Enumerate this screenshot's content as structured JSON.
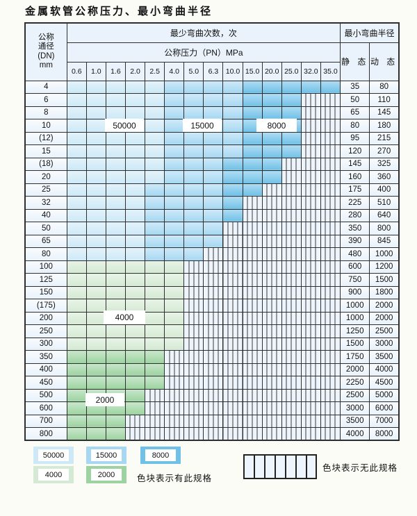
{
  "title": "金属软管公称压力、最小弯曲半径",
  "table": {
    "corner_header": [
      "公称",
      "通径",
      "(DN)",
      "mm"
    ],
    "bend_cycles_header": "最少弯曲次数，次",
    "radius_header": "最小弯曲半径",
    "pressure_header": "公称压力（PN）MPa",
    "static_header": "静 态",
    "dynamic_header": "动 态",
    "pressure_columns": [
      "0.6",
      "1.0",
      "1.6",
      "2.0",
      "2.5",
      "4.0",
      "5.0",
      "6.3",
      "10.0",
      "15.0",
      "20.0",
      "25.0",
      "32.0",
      "35.0"
    ],
    "rows": [
      {
        "dn": "4",
        "zones": [
          [
            "b1",
            5
          ],
          [
            "b2",
            4
          ],
          [
            "b3",
            5
          ]
        ],
        "static": "35",
        "dynamic": "80"
      },
      {
        "dn": "6",
        "zones": [
          [
            "b1",
            5
          ],
          [
            "b2",
            4
          ],
          [
            "b3",
            3
          ]
        ],
        "static": "50",
        "dynamic": "110"
      },
      {
        "dn": "8",
        "zones": [
          [
            "b1",
            5
          ],
          [
            "b2",
            4
          ],
          [
            "b3",
            3
          ]
        ],
        "static": "65",
        "dynamic": "145"
      },
      {
        "dn": "10",
        "zones": [
          [
            "b1",
            5
          ],
          [
            "b2",
            4
          ],
          [
            "b3",
            3
          ]
        ],
        "static": "80",
        "dynamic": "180"
      },
      {
        "dn": "(12)",
        "zones": [
          [
            "b1",
            5
          ],
          [
            "b2",
            4
          ],
          [
            "b3",
            3
          ]
        ],
        "static": "95",
        "dynamic": "215"
      },
      {
        "dn": "15",
        "zones": [
          [
            "b1",
            5
          ],
          [
            "b2",
            4
          ],
          [
            "b3",
            3
          ]
        ],
        "static": "120",
        "dynamic": "270"
      },
      {
        "dn": "(18)",
        "zones": [
          [
            "b1",
            5
          ],
          [
            "b2",
            3
          ],
          [
            "b3",
            3
          ]
        ],
        "static": "145",
        "dynamic": "325"
      },
      {
        "dn": "20",
        "zones": [
          [
            "b1",
            5
          ],
          [
            "b2",
            3
          ],
          [
            "b3",
            3
          ]
        ],
        "static": "160",
        "dynamic": "360"
      },
      {
        "dn": "25",
        "zones": [
          [
            "b1",
            4
          ],
          [
            "b2",
            4
          ],
          [
            "b3",
            2
          ]
        ],
        "static": "175",
        "dynamic": "400"
      },
      {
        "dn": "32",
        "zones": [
          [
            "b1",
            4
          ],
          [
            "b2",
            4
          ],
          [
            "b3",
            1
          ]
        ],
        "static": "225",
        "dynamic": "510"
      },
      {
        "dn": "40",
        "zones": [
          [
            "b1",
            4
          ],
          [
            "b2",
            4
          ],
          [
            "b3",
            1
          ]
        ],
        "static": "280",
        "dynamic": "640"
      },
      {
        "dn": "50",
        "zones": [
          [
            "b1",
            4
          ],
          [
            "b2",
            4
          ]
        ],
        "static": "350",
        "dynamic": "800"
      },
      {
        "dn": "65",
        "zones": [
          [
            "b1",
            4
          ],
          [
            "b2",
            4
          ]
        ],
        "static": "390",
        "dynamic": "845"
      },
      {
        "dn": "80",
        "zones": [
          [
            "b1",
            4
          ],
          [
            "b2",
            3
          ]
        ],
        "static": "480",
        "dynamic": "1000"
      },
      {
        "dn": "100",
        "zones": [
          [
            "g1",
            6
          ]
        ],
        "static": "600",
        "dynamic": "1200"
      },
      {
        "dn": "125",
        "zones": [
          [
            "g1",
            6
          ]
        ],
        "static": "750",
        "dynamic": "1500"
      },
      {
        "dn": "150",
        "zones": [
          [
            "g1",
            6
          ]
        ],
        "static": "900",
        "dynamic": "1800"
      },
      {
        "dn": "(175)",
        "zones": [
          [
            "g1",
            6
          ]
        ],
        "static": "1000",
        "dynamic": "2000"
      },
      {
        "dn": "200",
        "zones": [
          [
            "g1",
            6
          ]
        ],
        "static": "1000",
        "dynamic": "2000"
      },
      {
        "dn": "250",
        "zones": [
          [
            "g1",
            6
          ]
        ],
        "static": "1250",
        "dynamic": "2500"
      },
      {
        "dn": "300",
        "zones": [
          [
            "g1",
            6
          ]
        ],
        "static": "1500",
        "dynamic": "3000"
      },
      {
        "dn": "350",
        "zones": [
          [
            "g2",
            5
          ]
        ],
        "static": "1750",
        "dynamic": "3500"
      },
      {
        "dn": "400",
        "zones": [
          [
            "g2",
            5
          ]
        ],
        "static": "2000",
        "dynamic": "4000"
      },
      {
        "dn": "450",
        "zones": [
          [
            "g2",
            5
          ]
        ],
        "static": "2250",
        "dynamic": "4500"
      },
      {
        "dn": "500",
        "zones": [
          [
            "g2",
            4
          ]
        ],
        "static": "2500",
        "dynamic": "5000"
      },
      {
        "dn": "600",
        "zones": [
          [
            "g2",
            4
          ]
        ],
        "static": "3000",
        "dynamic": "6000"
      },
      {
        "dn": "700",
        "zones": [
          [
            "g2",
            3
          ]
        ],
        "static": "3500",
        "dynamic": "7000"
      },
      {
        "dn": "800",
        "zones": [
          [
            "g2",
            3
          ]
        ],
        "static": "4000",
        "dynamic": "8000"
      }
    ]
  },
  "overlays": [
    {
      "text": "50000"
    },
    {
      "text": "15000"
    },
    {
      "text": "8000"
    },
    {
      "text": "4000"
    },
    {
      "text": "2000"
    }
  ],
  "legend": {
    "items": [
      {
        "value": "50000",
        "zone": "b1"
      },
      {
        "value": "15000",
        "zone": "b2"
      },
      {
        "value": "8000",
        "zone": "b3"
      },
      {
        "value": "4000",
        "zone": "g1"
      },
      {
        "value": "2000",
        "zone": "g2"
      }
    ],
    "has_spec_text": "色块表示有此规格",
    "no_spec_text": "色块表示无此规格"
  },
  "colors": {
    "cycle_50000": "#cde9f7",
    "cycle_15000": "#a6d8f2",
    "cycle_8000": "#70c1e8",
    "cycle_4000": "#d5ead4",
    "cycle_2000": "#9cd3a0",
    "hatch_bg": "#edf4fb"
  }
}
